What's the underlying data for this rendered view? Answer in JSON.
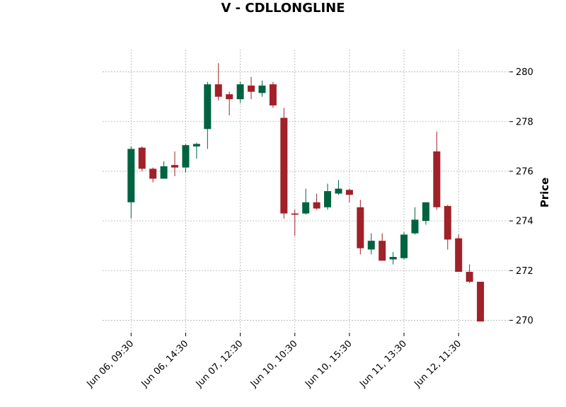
{
  "chart_data": {
    "type": "candlestick",
    "title": "V - CDLLONGLINE",
    "ylabel": "Price",
    "xlabel": "",
    "ylim": [
      269.5,
      280.9
    ],
    "yticks": [
      270,
      272,
      274,
      276,
      278,
      280
    ],
    "grid": true,
    "y_axis_side": "right",
    "colors": {
      "up": "#006340",
      "down": "#a02128"
    },
    "xticks": [
      {
        "index": 0,
        "label": "Jun 06, 09:30"
      },
      {
        "index": 5,
        "label": "Jun 06, 14:30"
      },
      {
        "index": 10,
        "label": "Jun 07, 12:30"
      },
      {
        "index": 15,
        "label": "Jun 10, 10:30"
      },
      {
        "index": 20,
        "label": "Jun 10, 15:30"
      },
      {
        "index": 25,
        "label": "Jun 11, 13:30"
      },
      {
        "index": 30,
        "label": "Jun 12, 11:30"
      }
    ],
    "candles": [
      {
        "o": 274.75,
        "h": 277.0,
        "l": 274.1,
        "c": 276.9
      },
      {
        "o": 276.95,
        "h": 277.0,
        "l": 276.0,
        "c": 276.1
      },
      {
        "o": 276.1,
        "h": 276.15,
        "l": 275.55,
        "c": 275.7
      },
      {
        "o": 275.7,
        "h": 276.4,
        "l": 275.7,
        "c": 276.2
      },
      {
        "o": 276.25,
        "h": 276.8,
        "l": 275.8,
        "c": 276.15
      },
      {
        "o": 276.15,
        "h": 277.1,
        "l": 275.95,
        "c": 277.05
      },
      {
        "o": 277.0,
        "h": 277.15,
        "l": 276.5,
        "c": 277.1
      },
      {
        "o": 277.7,
        "h": 279.6,
        "l": 276.9,
        "c": 279.5
      },
      {
        "o": 279.5,
        "h": 280.35,
        "l": 278.85,
        "c": 279.0
      },
      {
        "o": 279.1,
        "h": 279.2,
        "l": 278.25,
        "c": 278.9
      },
      {
        "o": 278.9,
        "h": 279.6,
        "l": 278.75,
        "c": 279.5
      },
      {
        "o": 279.45,
        "h": 279.8,
        "l": 278.9,
        "c": 279.2
      },
      {
        "o": 279.15,
        "h": 279.65,
        "l": 279.0,
        "c": 279.45
      },
      {
        "o": 279.5,
        "h": 279.6,
        "l": 278.55,
        "c": 278.65
      },
      {
        "o": 278.15,
        "h": 278.55,
        "l": 274.1,
        "c": 274.3
      },
      {
        "o": 274.3,
        "h": 274.45,
        "l": 273.4,
        "c": 274.25
      },
      {
        "o": 274.3,
        "h": 275.3,
        "l": 274.25,
        "c": 274.75
      },
      {
        "o": 274.75,
        "h": 275.1,
        "l": 274.45,
        "c": 274.5
      },
      {
        "o": 274.55,
        "h": 275.5,
        "l": 274.45,
        "c": 275.2
      },
      {
        "o": 275.1,
        "h": 275.65,
        "l": 275.05,
        "c": 275.3
      },
      {
        "o": 275.25,
        "h": 275.3,
        "l": 274.75,
        "c": 275.05
      },
      {
        "o": 274.55,
        "h": 274.85,
        "l": 272.65,
        "c": 272.9
      },
      {
        "o": 272.85,
        "h": 273.5,
        "l": 272.65,
        "c": 273.2
      },
      {
        "o": 273.2,
        "h": 273.5,
        "l": 272.4,
        "c": 272.4
      },
      {
        "o": 272.45,
        "h": 272.75,
        "l": 272.25,
        "c": 272.55
      },
      {
        "o": 272.5,
        "h": 273.55,
        "l": 272.45,
        "c": 273.45
      },
      {
        "o": 273.5,
        "h": 274.55,
        "l": 273.45,
        "c": 274.05
      },
      {
        "o": 274.0,
        "h": 274.75,
        "l": 273.85,
        "c": 274.75
      },
      {
        "o": 276.8,
        "h": 277.6,
        "l": 274.45,
        "c": 274.55
      },
      {
        "o": 274.6,
        "h": 274.65,
        "l": 272.85,
        "c": 273.25
      },
      {
        "o": 273.3,
        "h": 273.45,
        "l": 271.95,
        "c": 271.95
      },
      {
        "o": 271.95,
        "h": 272.25,
        "l": 271.5,
        "c": 271.55
      },
      {
        "o": 271.55,
        "h": 271.55,
        "l": 269.95,
        "c": 269.95
      }
    ]
  }
}
